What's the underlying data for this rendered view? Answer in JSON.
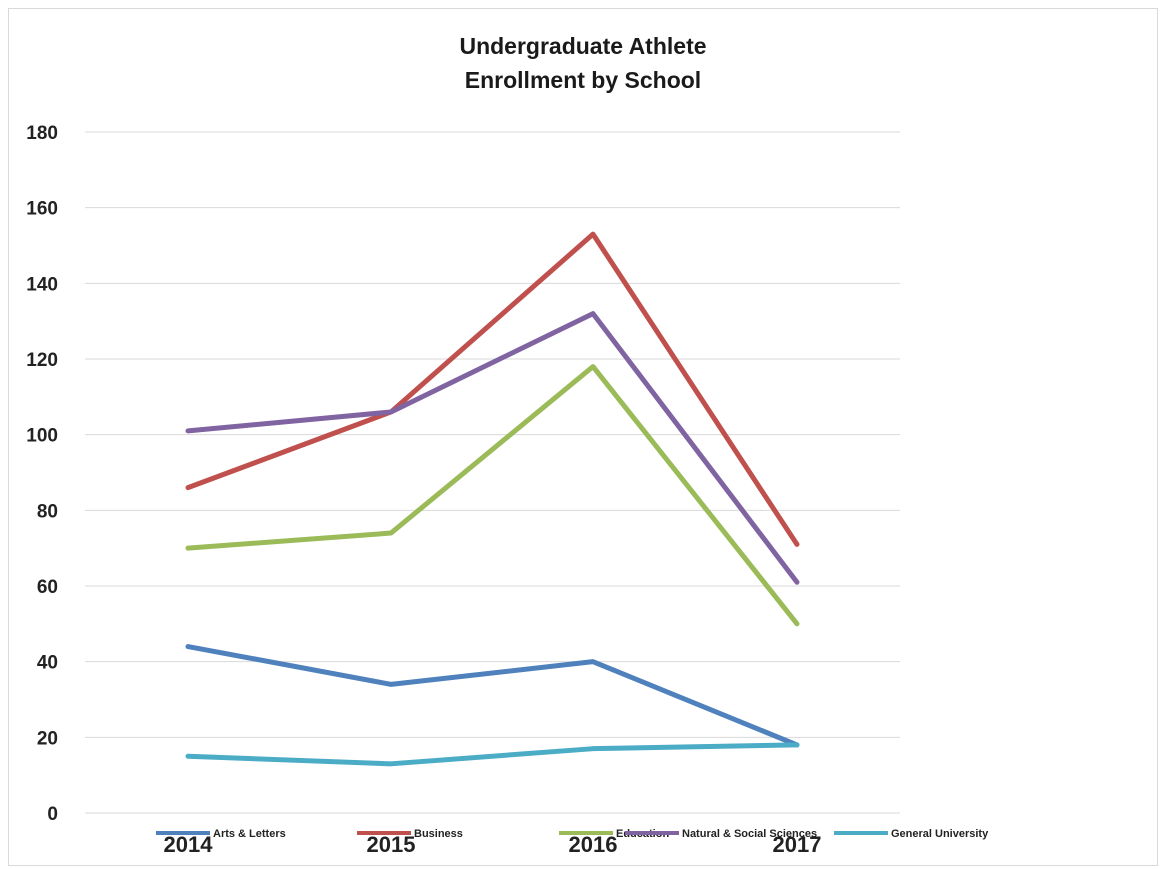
{
  "chart_data": {
    "type": "line",
    "title": "Undergraduate Athlete",
    "subtitle": "Enrollment by  School",
    "xlabel": "",
    "ylabel": "",
    "categories": [
      "2014",
      "2015",
      "2016",
      "2017"
    ],
    "ylim": [
      0,
      180
    ],
    "yticks": [
      "0",
      "20",
      "40",
      "60",
      "80",
      "100",
      "120",
      "140",
      "160",
      "180"
    ],
    "grid": true,
    "legend_position": "bottom",
    "series": [
      {
        "name": "Arts & Letters",
        "values": [
          44,
          34,
          40,
          18
        ],
        "color": "#4F81BD"
      },
      {
        "name": "Business",
        "values": [
          86,
          106,
          153,
          71
        ],
        "color": "#C0504D"
      },
      {
        "name": "Education",
        "values": [
          70,
          74,
          118,
          50
        ],
        "color": "#9BBB59"
      },
      {
        "name": "Natural & Social Sciences",
        "values": [
          101,
          106,
          132,
          61
        ],
        "color": "#8064A2"
      },
      {
        "name": "General University",
        "values": [
          15,
          13,
          17,
          18
        ],
        "color": "#4BACC6"
      }
    ]
  }
}
